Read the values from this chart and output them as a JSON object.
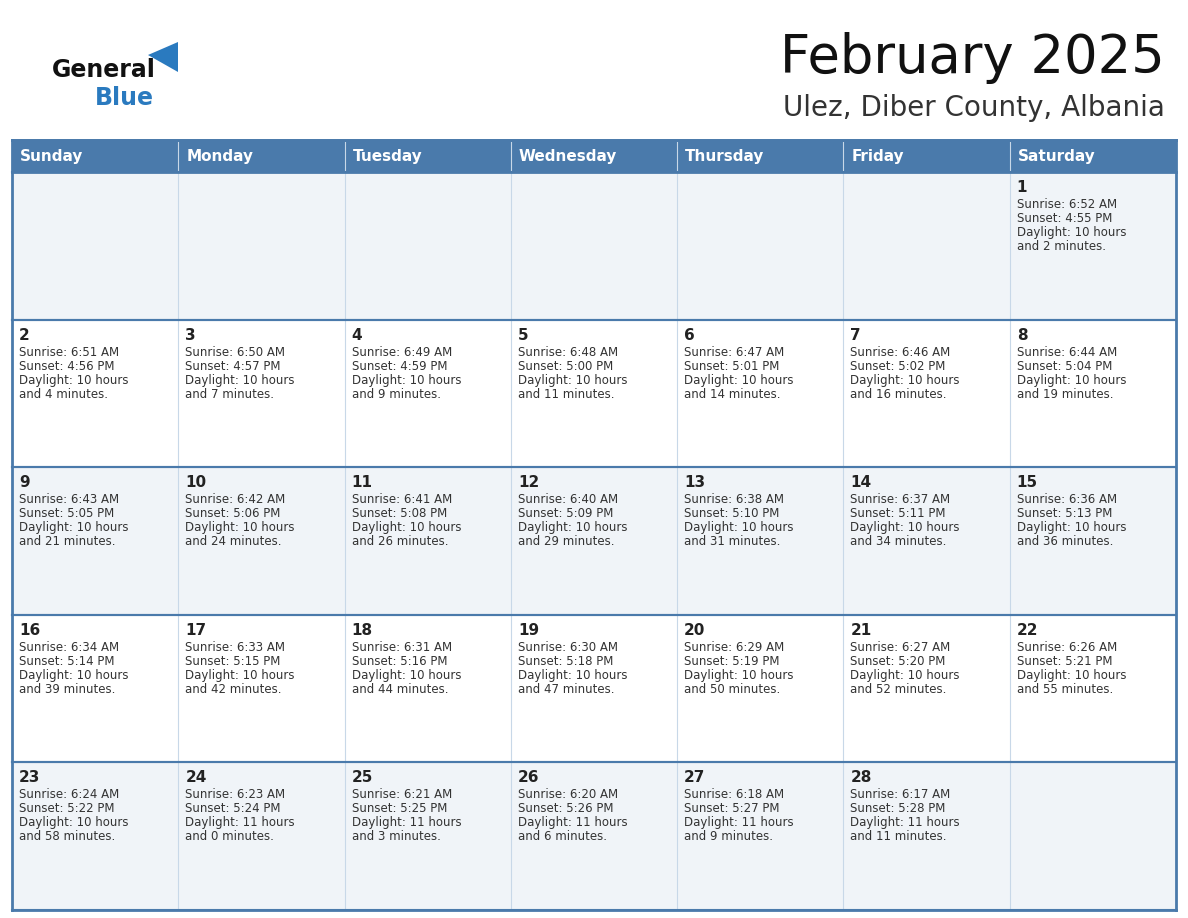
{
  "title": "February 2025",
  "subtitle": "Ulez, Diber County, Albania",
  "days_of_week": [
    "Sunday",
    "Monday",
    "Tuesday",
    "Wednesday",
    "Thursday",
    "Friday",
    "Saturday"
  ],
  "header_bg": "#4a7aab",
  "header_text": "#ffffff",
  "cell_bg_odd": "#f0f4f8",
  "cell_bg_even": "#ffffff",
  "border_color": "#4a7aab",
  "border_light": "#c8d8e8",
  "day_num_color": "#222222",
  "info_text_color": "#333333",
  "title_color": "#111111",
  "subtitle_color": "#333333",
  "logo_general_color": "#111111",
  "logo_blue_color": "#2a7abf",
  "weeks": [
    [
      {
        "day": null,
        "info": ""
      },
      {
        "day": null,
        "info": ""
      },
      {
        "day": null,
        "info": ""
      },
      {
        "day": null,
        "info": ""
      },
      {
        "day": null,
        "info": ""
      },
      {
        "day": null,
        "info": ""
      },
      {
        "day": 1,
        "info": "Sunrise: 6:52 AM\nSunset: 4:55 PM\nDaylight: 10 hours\nand 2 minutes."
      }
    ],
    [
      {
        "day": 2,
        "info": "Sunrise: 6:51 AM\nSunset: 4:56 PM\nDaylight: 10 hours\nand 4 minutes."
      },
      {
        "day": 3,
        "info": "Sunrise: 6:50 AM\nSunset: 4:57 PM\nDaylight: 10 hours\nand 7 minutes."
      },
      {
        "day": 4,
        "info": "Sunrise: 6:49 AM\nSunset: 4:59 PM\nDaylight: 10 hours\nand 9 minutes."
      },
      {
        "day": 5,
        "info": "Sunrise: 6:48 AM\nSunset: 5:00 PM\nDaylight: 10 hours\nand 11 minutes."
      },
      {
        "day": 6,
        "info": "Sunrise: 6:47 AM\nSunset: 5:01 PM\nDaylight: 10 hours\nand 14 minutes."
      },
      {
        "day": 7,
        "info": "Sunrise: 6:46 AM\nSunset: 5:02 PM\nDaylight: 10 hours\nand 16 minutes."
      },
      {
        "day": 8,
        "info": "Sunrise: 6:44 AM\nSunset: 5:04 PM\nDaylight: 10 hours\nand 19 minutes."
      }
    ],
    [
      {
        "day": 9,
        "info": "Sunrise: 6:43 AM\nSunset: 5:05 PM\nDaylight: 10 hours\nand 21 minutes."
      },
      {
        "day": 10,
        "info": "Sunrise: 6:42 AM\nSunset: 5:06 PM\nDaylight: 10 hours\nand 24 minutes."
      },
      {
        "day": 11,
        "info": "Sunrise: 6:41 AM\nSunset: 5:08 PM\nDaylight: 10 hours\nand 26 minutes."
      },
      {
        "day": 12,
        "info": "Sunrise: 6:40 AM\nSunset: 5:09 PM\nDaylight: 10 hours\nand 29 minutes."
      },
      {
        "day": 13,
        "info": "Sunrise: 6:38 AM\nSunset: 5:10 PM\nDaylight: 10 hours\nand 31 minutes."
      },
      {
        "day": 14,
        "info": "Sunrise: 6:37 AM\nSunset: 5:11 PM\nDaylight: 10 hours\nand 34 minutes."
      },
      {
        "day": 15,
        "info": "Sunrise: 6:36 AM\nSunset: 5:13 PM\nDaylight: 10 hours\nand 36 minutes."
      }
    ],
    [
      {
        "day": 16,
        "info": "Sunrise: 6:34 AM\nSunset: 5:14 PM\nDaylight: 10 hours\nand 39 minutes."
      },
      {
        "day": 17,
        "info": "Sunrise: 6:33 AM\nSunset: 5:15 PM\nDaylight: 10 hours\nand 42 minutes."
      },
      {
        "day": 18,
        "info": "Sunrise: 6:31 AM\nSunset: 5:16 PM\nDaylight: 10 hours\nand 44 minutes."
      },
      {
        "day": 19,
        "info": "Sunrise: 6:30 AM\nSunset: 5:18 PM\nDaylight: 10 hours\nand 47 minutes."
      },
      {
        "day": 20,
        "info": "Sunrise: 6:29 AM\nSunset: 5:19 PM\nDaylight: 10 hours\nand 50 minutes."
      },
      {
        "day": 21,
        "info": "Sunrise: 6:27 AM\nSunset: 5:20 PM\nDaylight: 10 hours\nand 52 minutes."
      },
      {
        "day": 22,
        "info": "Sunrise: 6:26 AM\nSunset: 5:21 PM\nDaylight: 10 hours\nand 55 minutes."
      }
    ],
    [
      {
        "day": 23,
        "info": "Sunrise: 6:24 AM\nSunset: 5:22 PM\nDaylight: 10 hours\nand 58 minutes."
      },
      {
        "day": 24,
        "info": "Sunrise: 6:23 AM\nSunset: 5:24 PM\nDaylight: 11 hours\nand 0 minutes."
      },
      {
        "day": 25,
        "info": "Sunrise: 6:21 AM\nSunset: 5:25 PM\nDaylight: 11 hours\nand 3 minutes."
      },
      {
        "day": 26,
        "info": "Sunrise: 6:20 AM\nSunset: 5:26 PM\nDaylight: 11 hours\nand 6 minutes."
      },
      {
        "day": 27,
        "info": "Sunrise: 6:18 AM\nSunset: 5:27 PM\nDaylight: 11 hours\nand 9 minutes."
      },
      {
        "day": 28,
        "info": "Sunrise: 6:17 AM\nSunset: 5:28 PM\nDaylight: 11 hours\nand 11 minutes."
      },
      {
        "day": null,
        "info": ""
      }
    ]
  ]
}
